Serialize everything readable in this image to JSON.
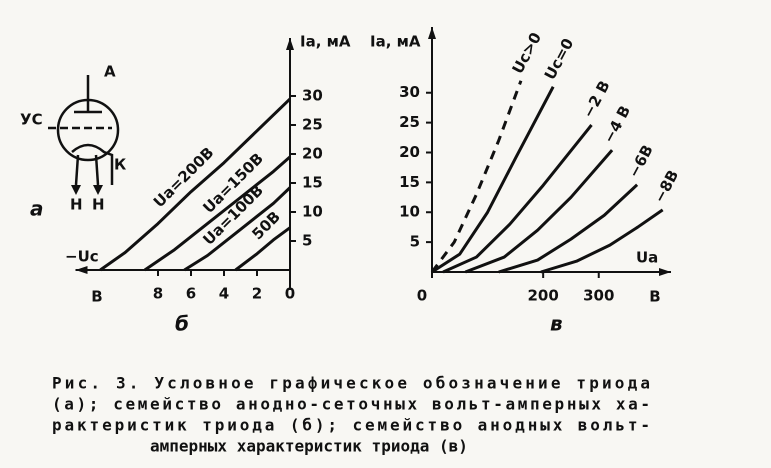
{
  "figure": {
    "symbol": {
      "anode": "А",
      "grid": "УС",
      "heater_left": "Н",
      "heater_right": "Н",
      "cathode": "К",
      "panel": "а"
    }
  },
  "chart_data": [
    {
      "type": "line",
      "panel": "б",
      "ylabel": "Iа, мА",
      "xlabel": "−Uс",
      "xunit": "В",
      "xlim": [
        13,
        0
      ],
      "xticks": [
        8,
        6,
        4,
        2,
        0
      ],
      "ylim": [
        0,
        40
      ],
      "yticks": [
        5,
        10,
        15,
        20,
        25,
        30
      ],
      "series": [
        {
          "name": "Ua=200В",
          "color": "#111",
          "x": [
            11.5,
            10,
            8,
            6,
            4,
            2,
            0
          ],
          "values": [
            0,
            3,
            8,
            13.5,
            18.5,
            24,
            29.5
          ]
        },
        {
          "name": "Ua=150В",
          "color": "#111",
          "x": [
            8.8,
            7,
            5,
            3,
            1,
            0
          ],
          "values": [
            0,
            3.5,
            8,
            12.5,
            17,
            19.5
          ]
        },
        {
          "name": "Ua=100В",
          "color": "#111",
          "x": [
            6.4,
            5,
            3,
            1,
            0
          ],
          "values": [
            0,
            2.5,
            7,
            11.5,
            14.2
          ]
        },
        {
          "name": "50В",
          "color": "#111",
          "x": [
            3.3,
            2,
            1,
            0
          ],
          "values": [
            0,
            2.8,
            5.2,
            7.3
          ]
        }
      ]
    },
    {
      "type": "line",
      "panel": "в",
      "ylabel": "Iа, мА",
      "xlabel": "Uа",
      "xunit": "В",
      "xlim": [
        0,
        430
      ],
      "xticks": [
        0,
        200,
        300
      ],
      "ylim": [
        0,
        41
      ],
      "yticks": [
        5,
        10,
        15,
        20,
        25,
        30
      ],
      "series": [
        {
          "name": "Uc>0",
          "color": "#111",
          "dash": true,
          "x": [
            0,
            40,
            80,
            120,
            160
          ],
          "values": [
            0,
            5,
            13,
            22,
            32
          ]
        },
        {
          "name": "Uc=0",
          "color": "#111",
          "x": [
            0,
            50,
            100,
            150,
            218
          ],
          "values": [
            0,
            3,
            10,
            19,
            31
          ]
        },
        {
          "name": "−2 В",
          "color": "#111",
          "x": [
            20,
            80,
            140,
            200,
            287
          ],
          "values": [
            0,
            2.5,
            8,
            14.5,
            24.6
          ]
        },
        {
          "name": "−4 В",
          "color": "#111",
          "x": [
            60,
            130,
            190,
            250,
            324
          ],
          "values": [
            0,
            2.5,
            7,
            12.5,
            20.4
          ]
        },
        {
          "name": "−6В",
          "color": "#111",
          "x": [
            120,
            190,
            250,
            310,
            369
          ],
          "values": [
            0,
            2,
            5.5,
            9.5,
            14.6
          ]
        },
        {
          "name": "−8В",
          "color": "#111",
          "x": [
            196,
            260,
            320,
            370,
            415
          ],
          "values": [
            0,
            1.8,
            4.5,
            7.5,
            10.4
          ]
        }
      ]
    }
  ],
  "caption": [
    "Рис. 3. Условное графическое обозначение триода",
    "(а); семейство анодно-сеточных вольт-амперных ха-",
    "рактеристик триода (б); семейство анодных вольт-",
    "амперных характеристик триода (в)"
  ]
}
